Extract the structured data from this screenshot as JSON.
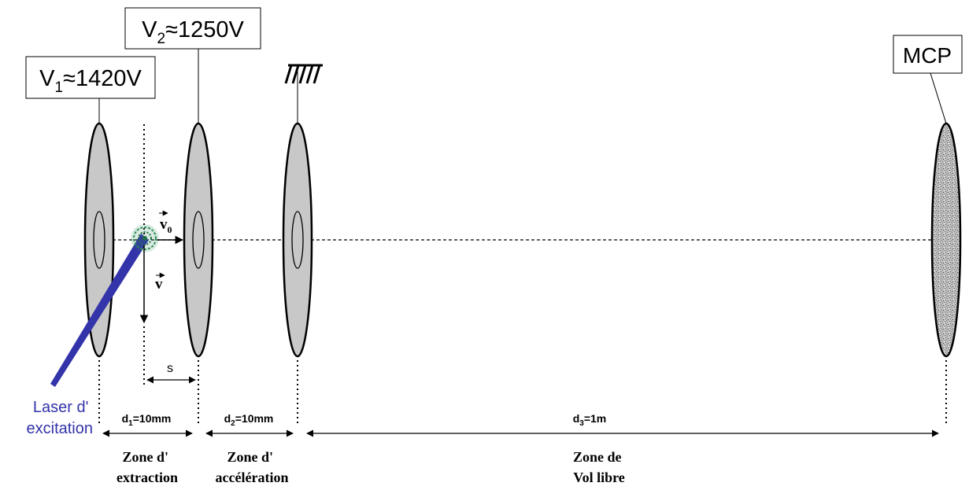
{
  "electrodes": {
    "v1": {
      "label_main": "V",
      "label_sub": "1",
      "label_rest": "≈1420V"
    },
    "v2": {
      "label_main": "V",
      "label_sub": "2",
      "label_rest": "≈1250V"
    },
    "mcp": {
      "label": "MCP"
    }
  },
  "vectors": {
    "v0": {
      "main": "v",
      "sub": "0"
    },
    "v": {
      "main": "v"
    }
  },
  "laser": {
    "line1": "Laser d'",
    "line2": "excitation",
    "color": "#3333aa"
  },
  "distances": {
    "s": "s",
    "d1": {
      "main": "d",
      "sub": "1",
      "rest": "=10mm"
    },
    "d2": {
      "main": "d",
      "sub": "2",
      "rest": "=10mm"
    },
    "d3": {
      "main": "d",
      "sub": "3",
      "rest": "=1m"
    }
  },
  "zones": {
    "extraction": {
      "line1": "Zone d'",
      "line2": "extraction"
    },
    "acceleration": {
      "line1": "Zone d'",
      "line2": "accélération"
    },
    "vol_libre": {
      "line1": "Zone de",
      "line2": "Vol libre"
    }
  },
  "colors": {
    "plate_fill": "#c8c8c8",
    "mcp_fill": "#b4b4b4",
    "cluster": "#2e8b57"
  }
}
